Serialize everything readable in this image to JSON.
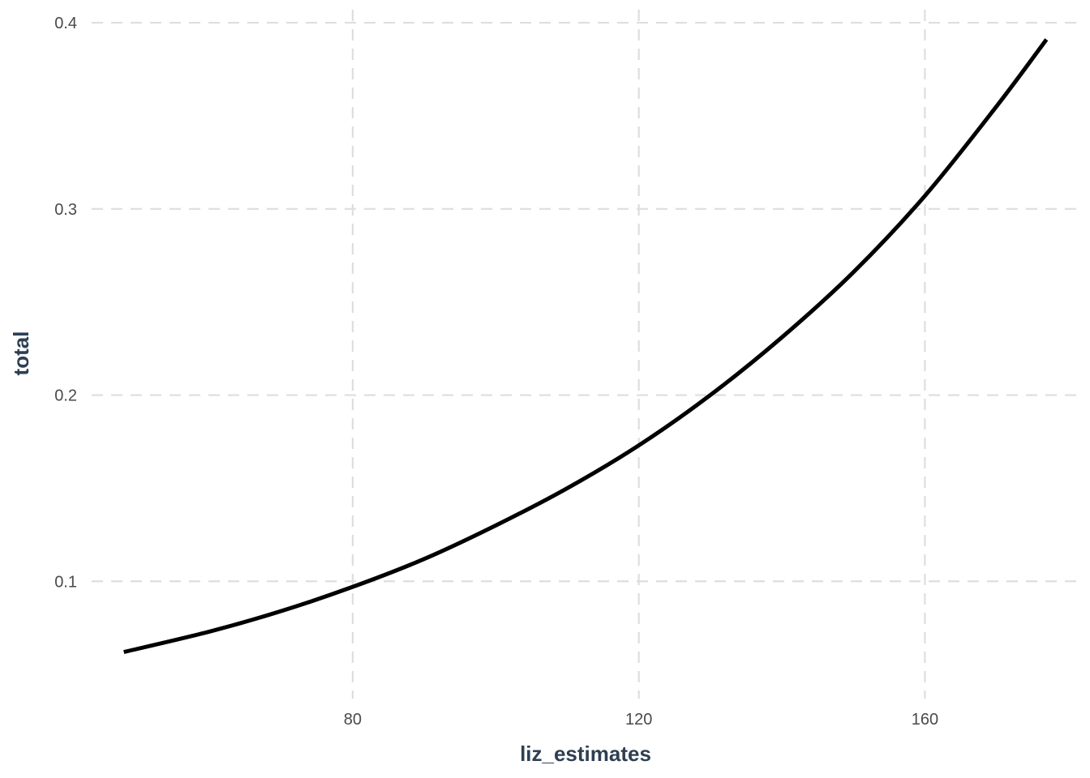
{
  "chart_data": {
    "type": "line",
    "title": "",
    "xlabel": "liz_estimates",
    "ylabel": "total",
    "xlim": [
      43.5,
      181.5
    ],
    "ylim": [
      0.037,
      0.407
    ],
    "x_ticks": [
      80,
      120,
      160
    ],
    "y_ticks": [
      0.1,
      0.2,
      0.3,
      0.4
    ],
    "x_tick_labels": [
      "80",
      "120",
      "160"
    ],
    "y_tick_labels": [
      "0.1",
      "0.2",
      "0.3",
      "0.4"
    ],
    "grid": true,
    "legend": "none",
    "colors": {
      "line": "#000000",
      "grid": "#dedede",
      "axis_title": "#2e3f52",
      "tick_label": "#4a4a4a"
    },
    "series": [
      {
        "x": [
          48,
          60,
          70,
          80,
          90,
          100,
          110,
          120,
          130,
          140,
          150,
          160,
          170,
          177
        ],
        "y": [
          0.062,
          0.073,
          0.084,
          0.097,
          0.112,
          0.13,
          0.15,
          0.173,
          0.2,
          0.231,
          0.266,
          0.307,
          0.355,
          0.391
        ]
      }
    ]
  }
}
